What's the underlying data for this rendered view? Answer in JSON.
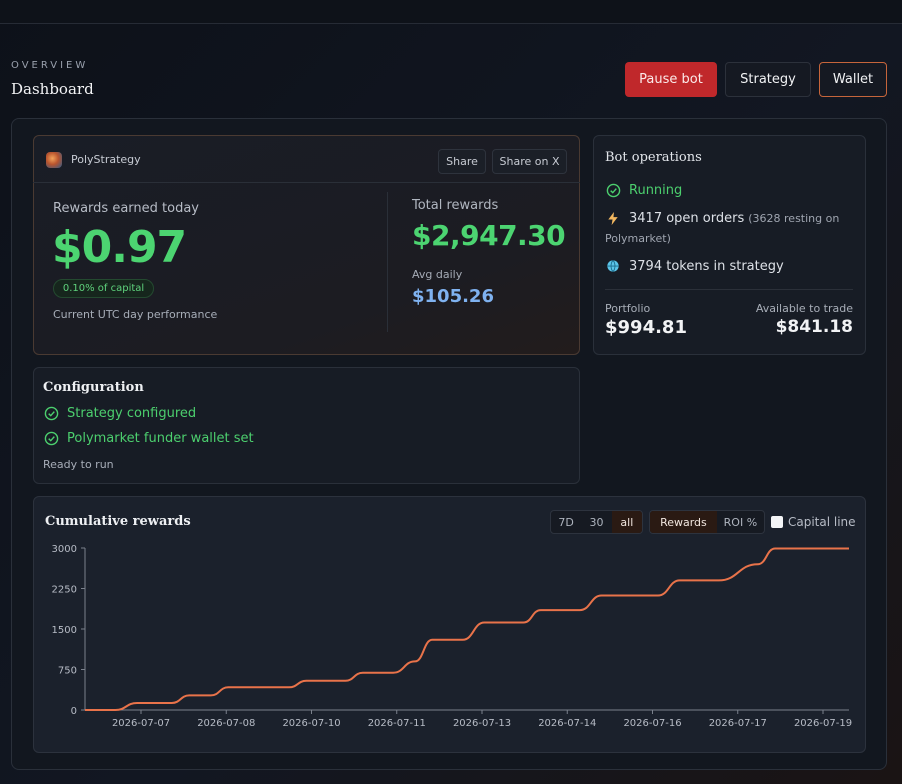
{
  "header": {
    "eyebrow": "OVERVIEW",
    "title": "Dashboard",
    "pause_label": "Pause bot",
    "strategy_label": "Strategy",
    "wallet_label": "Wallet"
  },
  "rewards_card": {
    "brand": "PolyStrategy",
    "share_label": "Share",
    "share_x_label": "Share on X",
    "today_label": "Rewards earned today",
    "today_value": "$0.97",
    "capital_pct": "0.10% of capital",
    "utc_note": "Current UTC day performance",
    "total_label": "Total rewards",
    "total_value": "$2,947.30",
    "avg_label": "Avg daily",
    "avg_value": "$105.26"
  },
  "bot_operations": {
    "title": "Bot operations",
    "status": "Running",
    "open_orders": "3417 open orders",
    "open_orders_note": "(3628 resting on",
    "open_orders_note2": "Polymarket)",
    "tokens": "3794 tokens in strategy",
    "portfolio_label": "Portfolio",
    "portfolio_value": "$994.81",
    "available_label": "Available to trade",
    "available_value": "$841.18",
    "colors": {
      "running": "#4ccf6e",
      "lightning": "#f4b860",
      "globe": "#5bc4e8"
    }
  },
  "configuration": {
    "title": "Configuration",
    "items": [
      "Strategy configured",
      "Polymarket funder wallet set"
    ],
    "status": "Ready to run"
  },
  "chart_controls": {
    "title": "Cumulative rewards",
    "ranges": [
      "7D",
      "30",
      "all"
    ],
    "active_range": "all",
    "metrics": [
      "Rewards",
      "ROI %"
    ],
    "active_metric": "Rewards",
    "capital_line_label": "Capital line",
    "capital_line_checked": false
  },
  "chart_data": {
    "type": "line",
    "title": "Cumulative rewards",
    "xlabel": "",
    "ylabel": "",
    "ylim": [
      0,
      3000
    ],
    "yticks": [
      0,
      750,
      1500,
      2250,
      3000
    ],
    "xticks": [
      "2026-07-07",
      "2026-07-08",
      "2026-07-10",
      "2026-07-11",
      "2026-07-13",
      "2026-07-14",
      "2026-07-16",
      "2026-07-17",
      "2026-07-19"
    ],
    "grid": false,
    "line_color": "#e9734a",
    "x": [
      0,
      0.35,
      0.6,
      1.0,
      1.2,
      1.45,
      1.65,
      1.9,
      2.15,
      2.35,
      2.55,
      2.75,
      3.0,
      3.2,
      3.35,
      3.55,
      3.8,
      4.0,
      4.2,
      4.35,
      4.6,
      4.85,
      5.05,
      5.25,
      5.5,
      5.7,
      5.95,
      6.15,
      6.4,
      6.6,
      6.85,
      7.05,
      7.3,
      7.5,
      7.75,
      7.95,
      8.1,
      8.3,
      8.55,
      8.8
    ],
    "values": [
      0,
      0,
      130,
      130,
      270,
      270,
      420,
      420,
      420,
      540,
      540,
      690,
      690,
      900,
      1300,
      1300,
      1620,
      1620,
      1850,
      1850,
      2120,
      2120,
      2120,
      2400,
      2400,
      2700,
      2990,
      2990,
      2990,
      2990,
      2990,
      2990,
      2990,
      2990,
      2990,
      2990,
      2990,
      2990,
      2990,
      2990
    ],
    "series_points": [
      [
        0.0,
        0
      ],
      [
        0.35,
        0
      ],
      [
        0.6,
        130
      ],
      [
        1.0,
        130
      ],
      [
        1.2,
        270
      ],
      [
        1.45,
        270
      ],
      [
        1.65,
        420
      ],
      [
        2.35,
        420
      ],
      [
        2.55,
        540
      ],
      [
        3.0,
        540
      ],
      [
        3.2,
        690
      ],
      [
        3.55,
        690
      ],
      [
        3.8,
        900
      ],
      [
        4.0,
        1300
      ],
      [
        4.35,
        1300
      ],
      [
        4.6,
        1620
      ],
      [
        5.05,
        1620
      ],
      [
        5.25,
        1850
      ],
      [
        5.7,
        1850
      ],
      [
        5.95,
        2120
      ],
      [
        6.6,
        2120
      ],
      [
        6.85,
        2400
      ],
      [
        7.3,
        2400
      ],
      [
        7.75,
        2700
      ],
      [
        7.95,
        2990
      ],
      [
        8.8,
        2990
      ]
    ]
  }
}
